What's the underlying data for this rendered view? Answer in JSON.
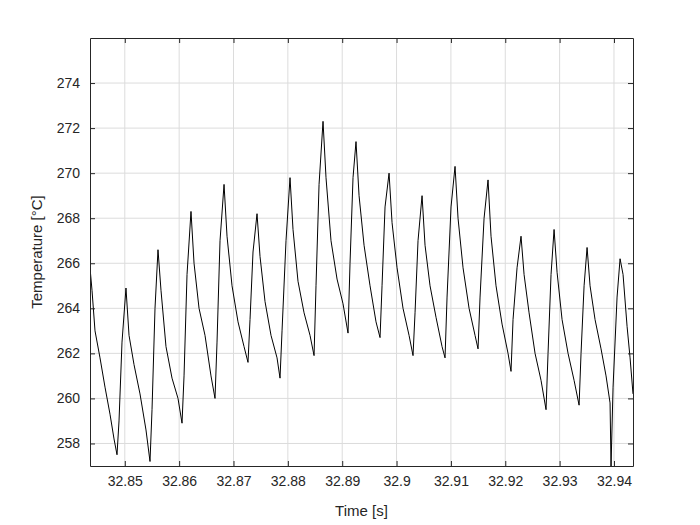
{
  "chart_data": {
    "type": "line",
    "xlabel": "Time [s]",
    "ylabel": "Temperature [°C]",
    "color": "#000000",
    "grid": true,
    "xlim": [
      32.8436,
      32.9435
    ],
    "ylim": [
      257,
      276
    ],
    "xticks": [
      32.85,
      32.86,
      32.87,
      32.88,
      32.89,
      32.9,
      32.91,
      32.92,
      32.93,
      32.94
    ],
    "yticks": [
      258,
      260,
      262,
      264,
      266,
      268,
      270,
      272,
      274
    ],
    "x": [
      32.8436,
      32.84397,
      32.84452,
      32.84544,
      32.84636,
      32.84728,
      32.84802,
      32.84857,
      32.84894,
      32.84949,
      32.85022,
      32.85078,
      32.8517,
      32.8528,
      32.8539,
      32.85464,
      32.85501,
      32.85556,
      32.85611,
      32.85666,
      32.85758,
      32.85869,
      32.85979,
      32.86053,
      32.8609,
      32.86145,
      32.86218,
      32.86274,
      32.86366,
      32.86476,
      32.86586,
      32.8666,
      32.86697,
      32.86752,
      32.86826,
      32.86881,
      32.86973,
      32.87083,
      32.87194,
      32.87267,
      32.87304,
      32.87359,
      32.87433,
      32.87488,
      32.8758,
      32.8769,
      32.87801,
      32.87856,
      32.87893,
      32.87966,
      32.8804,
      32.88095,
      32.88187,
      32.88298,
      32.88408,
      32.88482,
      32.88518,
      32.88574,
      32.88647,
      32.88702,
      32.88794,
      32.88905,
      32.89015,
      32.89107,
      32.89144,
      32.89199,
      32.89254,
      32.8931,
      32.89402,
      32.89512,
      32.89622,
      32.89696,
      32.89733,
      32.89788,
      32.89862,
      32.89917,
      32.90009,
      32.90119,
      32.9023,
      32.90303,
      32.9034,
      32.90395,
      32.90469,
      32.90524,
      32.90616,
      32.90726,
      32.90837,
      32.90892,
      32.90929,
      32.91002,
      32.91076,
      32.91131,
      32.91223,
      32.91334,
      32.91444,
      32.91499,
      32.91536,
      32.9161,
      32.91683,
      32.91738,
      32.9183,
      32.91941,
      32.92051,
      32.92106,
      32.92143,
      32.92217,
      32.9229,
      32.92346,
      32.92438,
      32.92548,
      32.92658,
      32.9275,
      32.92787,
      32.92842,
      32.92898,
      32.92953,
      32.93045,
      32.93155,
      32.93266,
      32.93358,
      32.93394,
      32.9345,
      32.93505,
      32.9356,
      32.93652,
      32.93762,
      32.93854,
      32.93928,
      32.93946,
      32.93983,
      32.94057,
      32.94112,
      32.94167,
      32.94241,
      32.94296,
      32.9435
    ],
    "values": [
      265.8,
      264.8,
      263.0,
      261.8,
      260.5,
      259.3,
      258.2,
      257.5,
      259.0,
      262.5,
      264.9,
      262.8,
      261.5,
      260.2,
      258.6,
      257.2,
      259.5,
      264.0,
      266.6,
      264.8,
      262.3,
      260.9,
      260.0,
      258.9,
      261.0,
      265.5,
      268.3,
      266.0,
      264.0,
      262.8,
      261.0,
      260.0,
      262.5,
      267.0,
      269.5,
      267.2,
      265.0,
      263.4,
      262.3,
      261.6,
      263.5,
      266.5,
      268.2,
      266.3,
      264.3,
      262.8,
      261.8,
      260.9,
      263.0,
      267.0,
      269.8,
      267.5,
      265.2,
      263.8,
      262.8,
      261.9,
      265.0,
      269.5,
      272.3,
      269.8,
      267.0,
      265.3,
      264.2,
      262.9,
      266.0,
      269.8,
      271.4,
      269.0,
      266.8,
      265.0,
      263.4,
      262.7,
      265.0,
      268.5,
      270.0,
      267.8,
      265.8,
      264.0,
      262.8,
      261.9,
      263.8,
      267.0,
      269.0,
      266.8,
      265.0,
      263.6,
      262.3,
      261.8,
      264.5,
      268.5,
      270.3,
      268.0,
      265.8,
      264.0,
      262.8,
      262.2,
      264.5,
      268.0,
      269.7,
      267.2,
      265.0,
      263.3,
      262.0,
      261.2,
      263.5,
      265.8,
      267.2,
      265.5,
      263.8,
      262.0,
      260.8,
      259.5,
      262.0,
      265.5,
      267.5,
      265.6,
      263.5,
      262.0,
      260.8,
      259.7,
      262.0,
      265.0,
      266.7,
      265.0,
      263.5,
      262.2,
      261.0,
      259.8,
      257.0,
      260.5,
      264.5,
      266.2,
      265.5,
      263.2,
      261.8,
      260.2
    ]
  }
}
